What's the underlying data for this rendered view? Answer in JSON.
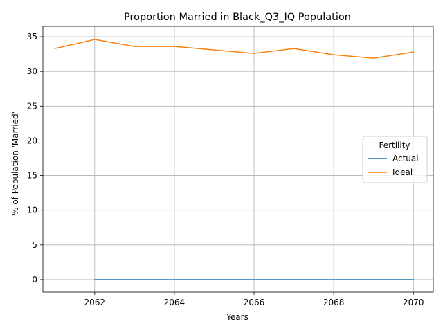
{
  "chart_data": {
    "type": "line",
    "title": "Proportion Married in Black_Q3_IQ Population",
    "xlabel": "Years",
    "ylabel": "% of Population 'Married'",
    "xlim": [
      2060.7,
      2070.5
    ],
    "ylim": [
      -1.8,
      36.5
    ],
    "xticks": [
      2062,
      2064,
      2066,
      2068,
      2070
    ],
    "yticks": [
      0,
      5,
      10,
      15,
      20,
      25,
      30,
      35
    ],
    "grid": true,
    "legend": {
      "title": "Fertility",
      "placement": "center-right"
    },
    "series": [
      {
        "name": "Actual",
        "color": "#1f77b4",
        "x": [
          2062,
          2063,
          2064,
          2065,
          2066,
          2067,
          2068,
          2069,
          2070
        ],
        "y": [
          0,
          0,
          0,
          0,
          0,
          0,
          0,
          0,
          0
        ]
      },
      {
        "name": "Ideal",
        "color": "#ff7f0e",
        "x": [
          2061,
          2062,
          2063,
          2064,
          2065,
          2066,
          2067,
          2068,
          2069,
          2070
        ],
        "y": [
          33.3,
          34.6,
          33.6,
          33.6,
          33.1,
          32.6,
          33.3,
          32.4,
          31.9,
          32.8
        ]
      }
    ]
  }
}
